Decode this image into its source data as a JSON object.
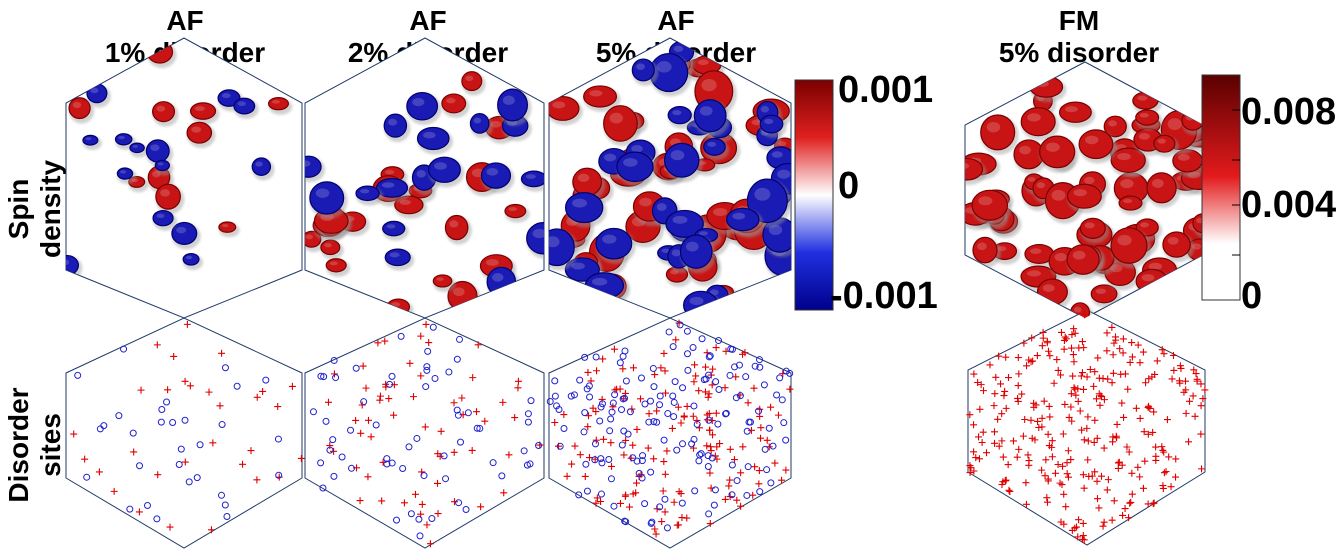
{
  "columns": [
    {
      "line1": "AF",
      "line2": "1% disorder"
    },
    {
      "line1": "AF",
      "line2": "2% disorder"
    },
    {
      "line1": "AF",
      "line2": "5% disorder"
    },
    {
      "line1": "FM",
      "line2": "5% disorder"
    }
  ],
  "rows": [
    {
      "line1": "Spin",
      "line2": "density"
    },
    {
      "line1": "Disorder",
      "line2": "sites"
    }
  ],
  "colorbar_af": {
    "top": "0.001",
    "middle": "0",
    "bottom": "-0.001",
    "colors": {
      "positive": "#8b0000",
      "zero": "#ffffff",
      "negative": "#00008b"
    }
  },
  "colorbar_fm": {
    "top": "0.008",
    "middle": "0.004",
    "bottom": "0",
    "colors": {
      "high": "#6e0000",
      "mid": "#e31a1c",
      "low": "#ffffff"
    }
  },
  "markers": {
    "cross_color": "#e00000",
    "circle_color": "#2020d0",
    "hex_edge_color": "#1f3a6a"
  }
}
